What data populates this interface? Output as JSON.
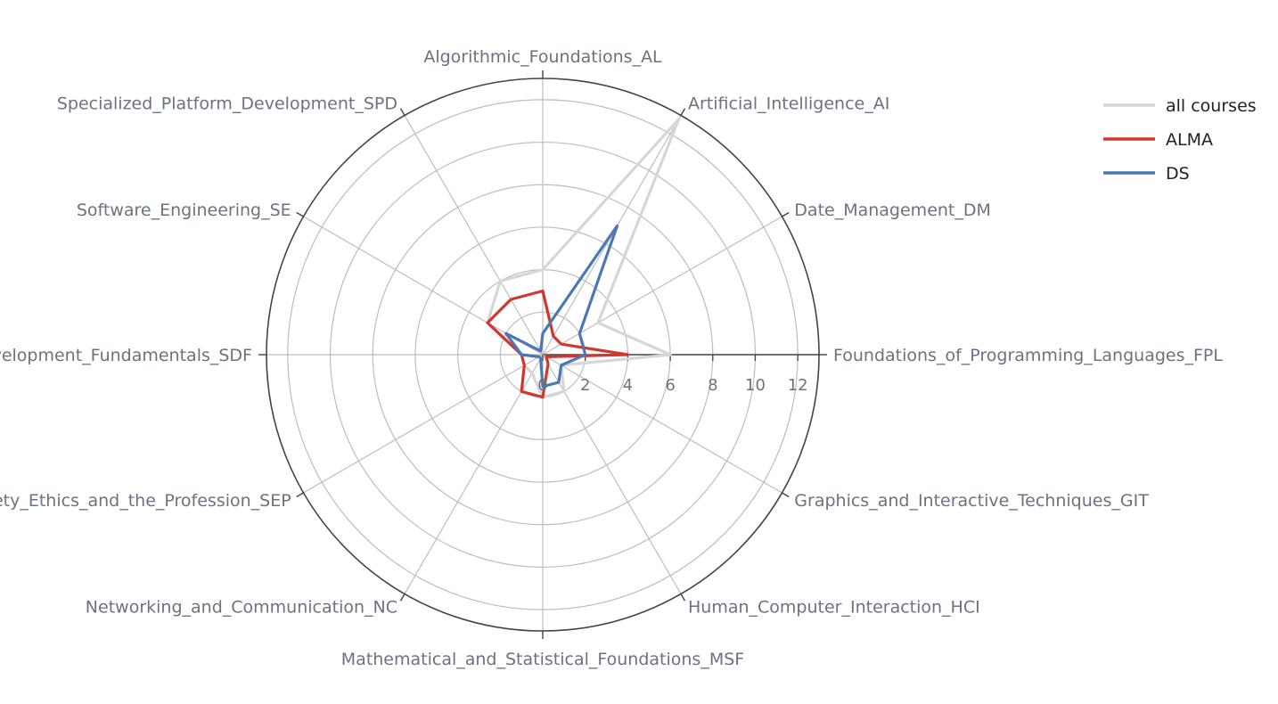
{
  "chart_data": {
    "type": "radar",
    "title": "",
    "axes": [
      "Algorithmic_Foundations_AL",
      "Artificial_Intelligence_AI",
      "Date_Management_DM",
      "Foundations_of_Programming_Languages_FPL",
      "Graphics_and_Interactive_Techniques_GIT",
      "Human_Computer_Interaction_HCI",
      "Mathematical_and_Statistical_Foundations_MSF",
      "Networking_and_Communication_NC",
      "Society_Ethics_and_the_Profession_SEP",
      "Software_Development_Fundamentals_SDF",
      "Software_Engineering_SE",
      "Specialized_Platform_Development_SPD"
    ],
    "radial_range": [
      0,
      13
    ],
    "tick_values": [
      0,
      2,
      4,
      6,
      8,
      10,
      12
    ],
    "tick_labels": [
      "0",
      "2",
      "4",
      "6",
      "8",
      "10",
      "12"
    ],
    "grid": true,
    "legend_position": "top-right",
    "series": [
      {
        "name": "all courses",
        "color": "#d6d6d6",
        "values": [
          4,
          12.8,
          3,
          6,
          1,
          2,
          2,
          1,
          1,
          1,
          3,
          4
        ]
      },
      {
        "name": "ALMA",
        "color": "#d1362f",
        "values": [
          3,
          1,
          1,
          4,
          0.2,
          0.5,
          2,
          2,
          1,
          1,
          3,
          3
        ]
      },
      {
        "name": "DS",
        "color": "#4c78b5",
        "values": [
          1,
          7,
          2,
          2,
          1,
          1.5,
          1.5,
          0.2,
          0.2,
          1,
          2,
          0.2
        ]
      }
    ]
  }
}
